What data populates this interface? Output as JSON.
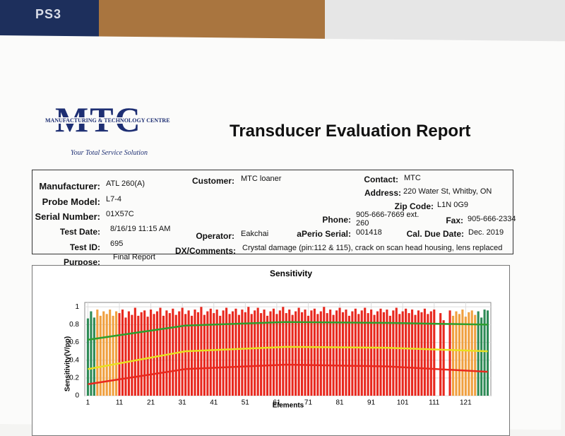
{
  "background": {
    "box_text": "PS3"
  },
  "header": {
    "logo": "MTC",
    "logo_subtitle": "MANUFACTURING & TECHNOLOGY CENTRE",
    "tagline": "Your Total Service Solution",
    "title": "Transducer Evaluation Report"
  },
  "fields": [
    {
      "label": "Manufacturer:",
      "value": "ATL 260(A)"
    },
    {
      "label": "Probe Model:",
      "value": "L7-4"
    },
    {
      "label": "Serial Number:",
      "value": "01X57C"
    },
    {
      "label": "Test Date:",
      "value": "8/16/19 11:15 AM"
    },
    {
      "label": "Test ID:",
      "value": "695"
    },
    {
      "label": "Purpose:",
      "value": "Final Report"
    },
    {
      "label": "Customer:",
      "value": "MTC loaner"
    },
    {
      "label": "Operator:",
      "value": "Eakchai"
    },
    {
      "label": "DX/Comments:",
      "value": "Crystal damage (pin:112 & 115), crack on scan head housing, lens replaced"
    },
    {
      "label": "Contact:",
      "value": "MTC"
    },
    {
      "label": "Address:",
      "value": "220 Water St, Whitby, ON"
    },
    {
      "label": "Zip Code:",
      "value": "L1N 0G9"
    },
    {
      "label": "Phone:",
      "value": "905-666-7669 ext. 260"
    },
    {
      "label": "Fax:",
      "value": "905-666-2334"
    },
    {
      "label": "aPerio Serial:",
      "value": "001418"
    },
    {
      "label": "Cal. Due Date:",
      "value": "Dec. 2019"
    }
  ],
  "chart_data": {
    "type": "bar",
    "title": "Sensitivity",
    "x_label": "Elements",
    "y_label": "Sensitivity(V/pp)",
    "xlim": [
      0,
      129
    ],
    "xticks": [
      1,
      11,
      21,
      31,
      41,
      51,
      61,
      71,
      81,
      91,
      101,
      111,
      121
    ],
    "ylim": [
      0,
      1.05
    ],
    "yticks": [
      0,
      0.2,
      0.4,
      0.6,
      0.8,
      1
    ],
    "grid": true,
    "series": [
      {
        "color": "#2e8b57",
        "x": [
          1,
          2,
          3,
          125,
          126,
          127,
          128
        ],
        "values": [
          0.87,
          0.95,
          0.88,
          0.95,
          0.88,
          0.97,
          0.96
        ]
      },
      {
        "color": "#f0a040",
        "x": [
          4,
          5,
          6,
          7,
          8,
          9,
          10,
          117,
          118,
          119,
          120,
          121,
          122,
          123,
          124
        ],
        "values": [
          0.97,
          0.9,
          0.95,
          0.92,
          0.97,
          0.9,
          0.95,
          0.9,
          0.95,
          0.92,
          0.97,
          0.89,
          0.94,
          0.96,
          0.91
        ]
      },
      {
        "color": "#e8281e",
        "x": [
          11,
          12,
          13,
          14,
          15,
          16,
          17,
          18,
          19,
          20,
          21,
          22,
          23,
          24,
          25,
          26,
          27,
          28,
          29,
          30,
          31,
          32,
          33,
          34,
          35,
          36,
          37,
          38,
          39,
          40,
          41,
          42,
          43,
          44,
          45,
          46,
          47,
          48,
          49,
          50,
          51,
          52,
          53,
          54,
          55,
          56,
          57,
          58,
          59,
          60,
          61,
          62,
          63,
          64,
          65,
          66,
          67,
          68,
          69,
          70,
          71,
          72,
          73,
          74,
          75,
          76,
          77,
          78,
          79,
          80,
          81,
          82,
          83,
          84,
          85,
          86,
          87,
          88,
          89,
          90,
          91,
          92,
          93,
          94,
          95,
          96,
          97,
          98,
          99,
          100,
          101,
          102,
          103,
          104,
          105,
          106,
          107,
          108,
          109,
          110,
          111,
          113,
          114,
          116
        ],
        "values": [
          0.93,
          0.97,
          0.88,
          0.95,
          0.91,
          0.99,
          0.9,
          0.94,
          0.96,
          0.89,
          0.97,
          0.92,
          0.95,
          0.99,
          0.9,
          0.96,
          0.93,
          0.98,
          0.91,
          0.95,
          0.99,
          0.92,
          0.96,
          0.9,
          0.97,
          0.94,
          1.0,
          0.91,
          0.95,
          0.98,
          0.93,
          0.97,
          0.9,
          0.96,
          0.99,
          0.92,
          0.95,
          0.98,
          0.91,
          0.97,
          0.94,
          1.0,
          0.92,
          0.96,
          0.99,
          0.93,
          0.97,
          0.9,
          0.95,
          0.98,
          0.92,
          0.96,
          1.0,
          0.93,
          0.97,
          0.91,
          0.95,
          0.99,
          0.94,
          0.97,
          0.9,
          0.96,
          0.98,
          0.92,
          0.95,
          1.0,
          0.93,
          0.97,
          0.91,
          0.96,
          0.99,
          0.94,
          0.97,
          0.9,
          0.95,
          0.98,
          0.92,
          0.96,
          0.99,
          0.93,
          0.97,
          0.91,
          0.95,
          0.98,
          0.94,
          0.97,
          0.9,
          0.96,
          0.99,
          0.92,
          0.95,
          0.98,
          0.93,
          0.97,
          0.91,
          0.96,
          0.94,
          0.98,
          0.92,
          0.95,
          0.97,
          0.93,
          0.85,
          0.96
        ]
      }
    ],
    "lines": [
      {
        "color": "#2e9e2e",
        "x": [
          1,
          32,
          64,
          96,
          128
        ],
        "values": [
          0.63,
          0.79,
          0.83,
          0.82,
          0.8
        ]
      },
      {
        "color": "#e8e020",
        "x": [
          1,
          32,
          64,
          96,
          128
        ],
        "values": [
          0.3,
          0.5,
          0.55,
          0.54,
          0.5
        ]
      },
      {
        "color": "#e8281e",
        "x": [
          1,
          32,
          64,
          96,
          128
        ],
        "values": [
          0.13,
          0.3,
          0.35,
          0.33,
          0.27
        ]
      }
    ]
  }
}
